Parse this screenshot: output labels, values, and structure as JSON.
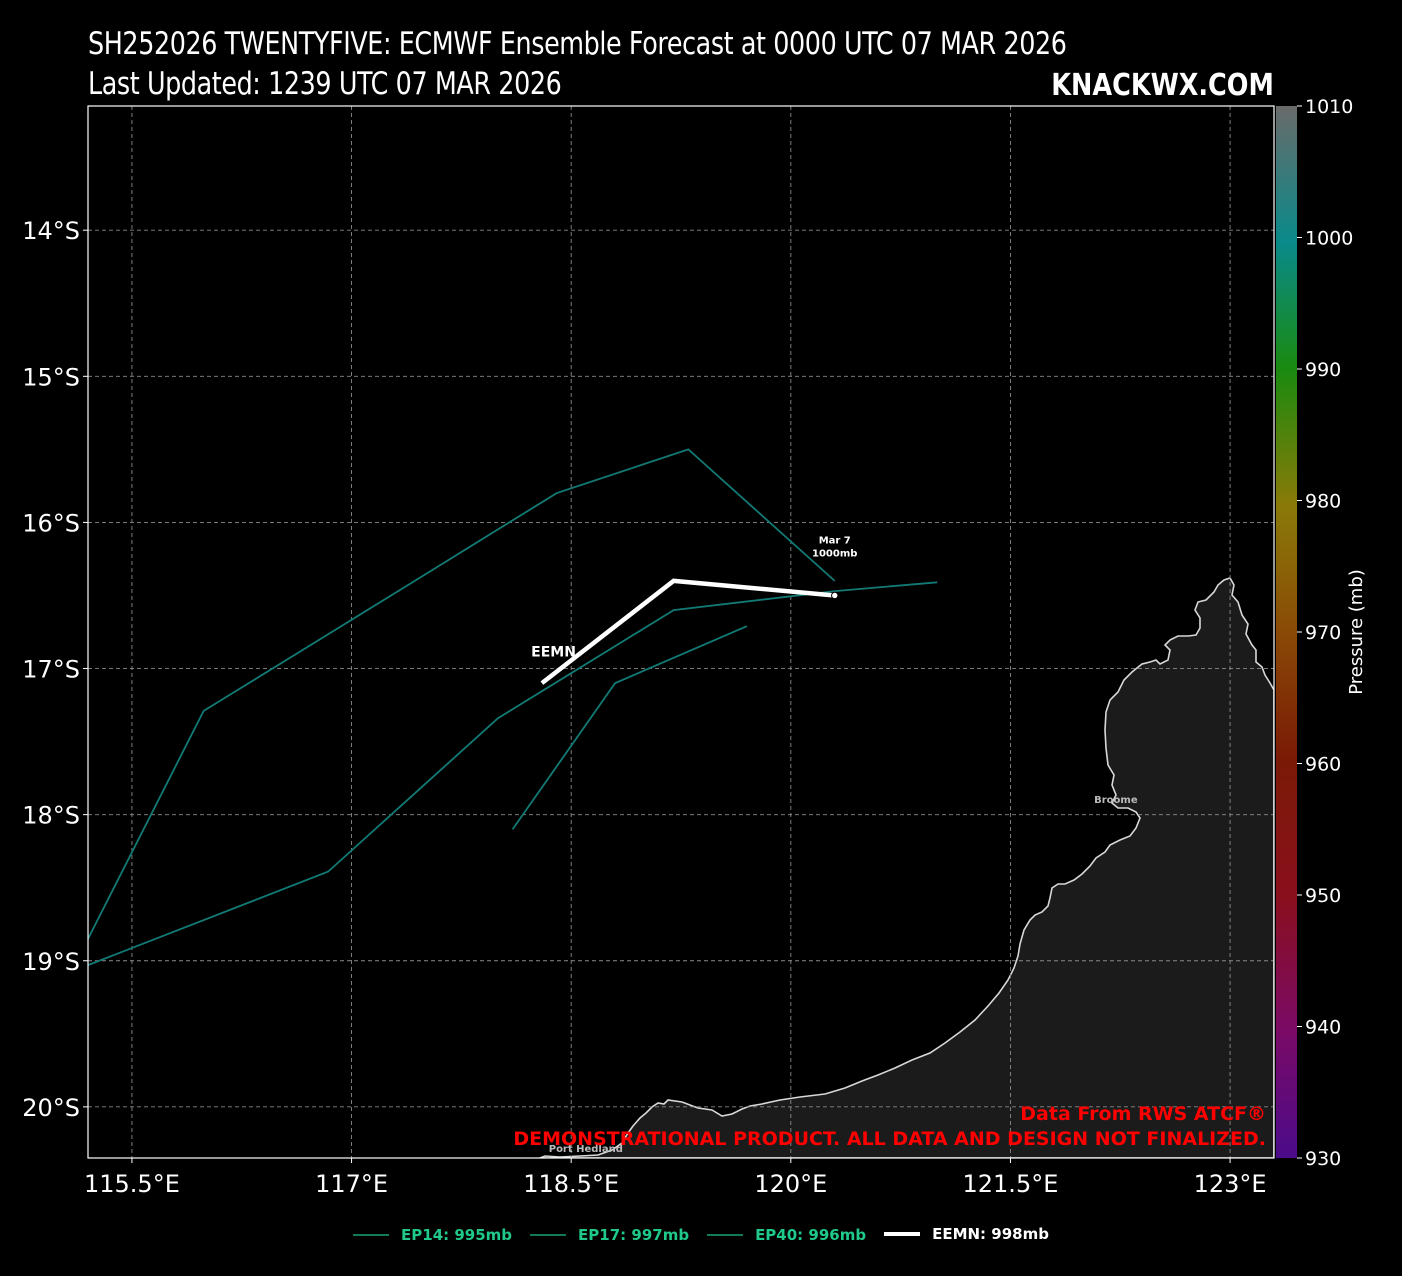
{
  "header": {
    "title_line1": "SH252026 TWENTYFIVE: ECMWF Ensemble Forecast at 0000 UTC 07 MAR 2026",
    "title_line2": "Last Updated: 1239 UTC 07 MAR 2026",
    "brand": "KNACKWX.COM"
  },
  "map": {
    "lon_range": [
      115.2,
      123.3
    ],
    "lat_range": [
      -20.35,
      -13.15
    ],
    "lon_ticks": [
      {
        "value": 115.5,
        "label": "115.5°E"
      },
      {
        "value": 117,
        "label": "117°E"
      },
      {
        "value": 118.5,
        "label": "118.5°E"
      },
      {
        "value": 120,
        "label": "120°E"
      },
      {
        "value": 121.5,
        "label": "121.5°E"
      },
      {
        "value": 123,
        "label": "123°E"
      }
    ],
    "lat_ticks": [
      {
        "value": -14,
        "label": "14°S"
      },
      {
        "value": -15,
        "label": "15°S"
      },
      {
        "value": -16,
        "label": "16°S"
      },
      {
        "value": -17,
        "label": "17°S"
      },
      {
        "value": -18,
        "label": "18°S"
      },
      {
        "value": -19,
        "label": "19°S"
      },
      {
        "value": -20,
        "label": "20°S"
      }
    ],
    "cities": [
      {
        "name": "Port Hedland",
        "lon": 118.6,
        "lat": -20.31
      },
      {
        "name": "Broome",
        "lon": 122.22,
        "lat": -17.92
      }
    ],
    "ensemble_tracks": [
      {
        "name": "EP14",
        "points": [
          [
            115.2,
            -18.85
          ],
          [
            115.99,
            -17.29
          ],
          [
            117.4,
            -16.42
          ],
          [
            118.4,
            -15.8
          ],
          [
            119.3,
            -15.5
          ],
          [
            120.3,
            -16.4
          ]
        ]
      },
      {
        "name": "EP17",
        "points": [
          [
            115.2,
            -19.03
          ],
          [
            116.84,
            -18.39
          ],
          [
            118.0,
            -17.34
          ],
          [
            119.2,
            -16.6
          ],
          [
            120.3,
            -16.47
          ],
          [
            121.0,
            -16.41
          ]
        ]
      },
      {
        "name": "EP40",
        "points": [
          [
            118.1,
            -18.1
          ],
          [
            118.8,
            -17.1
          ],
          [
            119.7,
            -16.71
          ]
        ]
      }
    ],
    "mean_track": {
      "name": "EEMN",
      "points": [
        [
          118.3,
          -17.1
        ],
        [
          119.2,
          -16.4
        ],
        [
          120.3,
          -16.5
        ]
      ],
      "label_point": [
        118.4,
        -16.85
      ],
      "annotation": {
        "date": "Mar  7",
        "pressure": "1000mb",
        "point": [
          120.3,
          -16.5
        ]
      }
    },
    "land_color": "#1b1b1b",
    "track_color": "#127a75",
    "mean_color": "#ffffff"
  },
  "watermark": {
    "line1": "Data From RWS ATCF®",
    "line2": "DEMONSTRATIONAL PRODUCT. ALL DATA AND DESIGN NOT FINALIZED.",
    "color": "#ff0000"
  },
  "colorbar": {
    "label": "Pressure (mb)",
    "range": [
      930,
      1010
    ],
    "ticks": [
      "1010",
      "1000",
      "990",
      "980",
      "970",
      "960",
      "950",
      "940",
      "930"
    ]
  },
  "legend": {
    "items": [
      {
        "label": "EP14: 995mb",
        "color": "#1ec98a",
        "line": "#127a55"
      },
      {
        "label": "EP17: 997mb",
        "color": "#1ec98a",
        "line": "#127a55"
      },
      {
        "label": "EP40: 996mb",
        "color": "#1ec98a",
        "line": "#127a55"
      },
      {
        "label": "EEMN: 998mb",
        "color": "#ffffff",
        "line": "#ffffff",
        "thick": true
      }
    ]
  }
}
